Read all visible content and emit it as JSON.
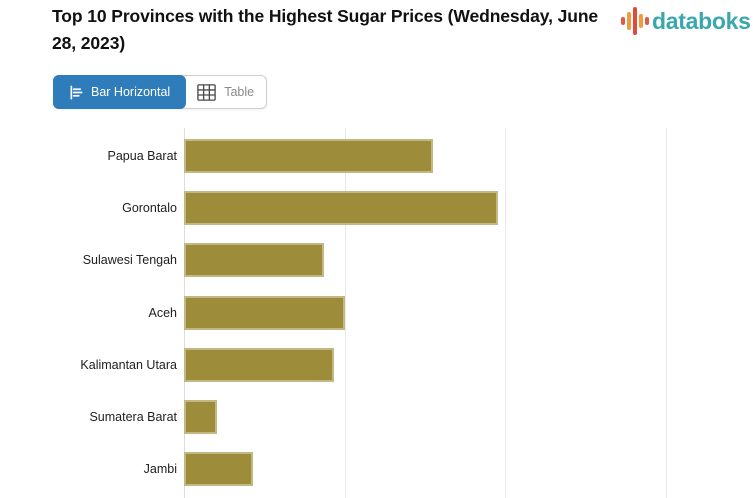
{
  "header": {
    "title": "Top 10 Provinces with the Highest Sugar Prices (Wednesday, June 28, 2023)",
    "brand": "databoks"
  },
  "toolbar": {
    "tabs": [
      {
        "label": "Bar Horizontal",
        "icon": "bar-horizontal-icon",
        "active": true
      },
      {
        "label": "Table",
        "icon": "table-icon",
        "active": false
      }
    ]
  },
  "colors": {
    "accent_blue": "#2e7cba",
    "bar_fill": "#9d8d3a",
    "brand_teal": "#3aa7ad",
    "logo_red": "#e05a47",
    "logo_orange": "#f29a3d",
    "gridline": "#e9e9e9"
  },
  "chart_data": {
    "type": "bar",
    "orientation": "horizontal",
    "title": "Top 10 Provinces with the Highest Sugar Prices (Wednesday, June 28, 2023)",
    "categories": [
      "Papua Barat",
      "Gorontalo",
      "Sulawesi Tengah",
      "Aceh",
      "Kalimantan Utara",
      "Sumatera Barat",
      "Jambi"
    ],
    "values_gridline_units": [
      1.55,
      1.95,
      0.87,
      1.0,
      0.93,
      0.21,
      0.43
    ],
    "bar_length_pct_of_plot": [
      43.8,
      55.2,
      24.6,
      28.3,
      26.4,
      5.8,
      12.1
    ],
    "bar_color": "#9d8d3a",
    "gridline_pct": [
      0,
      28.3,
      56.4,
      84.7
    ],
    "x_tick_labels_visible": false,
    "visible_categories_count": 7,
    "legend": "none",
    "grid": "vertical"
  }
}
